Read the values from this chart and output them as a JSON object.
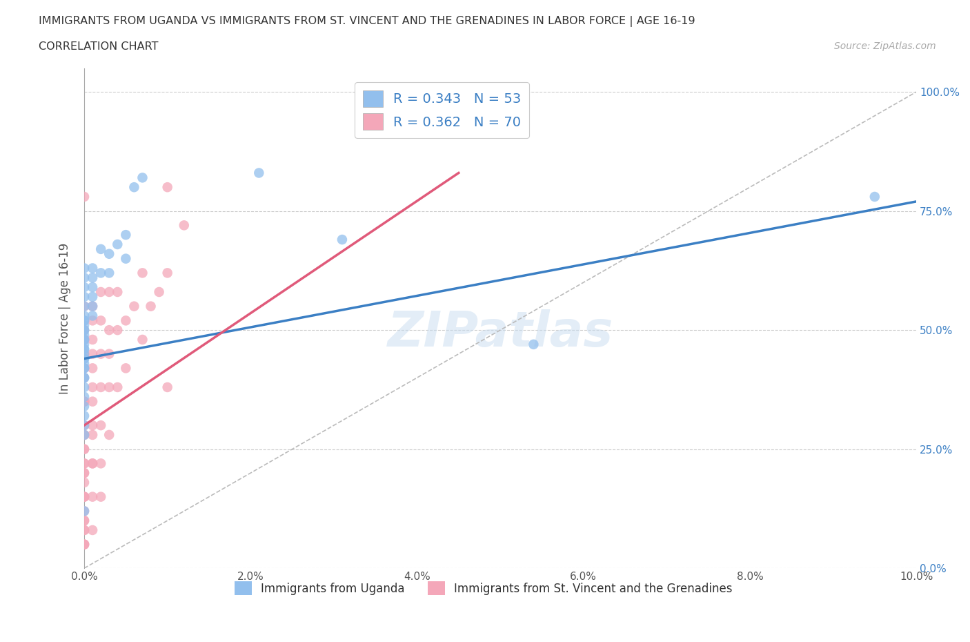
{
  "title": "IMMIGRANTS FROM UGANDA VS IMMIGRANTS FROM ST. VINCENT AND THE GRENADINES IN LABOR FORCE | AGE 16-19",
  "subtitle": "CORRELATION CHART",
  "source": "Source: ZipAtlas.com",
  "ylabel": "In Labor Force | Age 16-19",
  "xlim": [
    0.0,
    0.1
  ],
  "ylim": [
    0.0,
    1.05
  ],
  "xticks": [
    0.0,
    0.02,
    0.04,
    0.06,
    0.08,
    0.1
  ],
  "xticklabels": [
    "0.0%",
    "2.0%",
    "4.0%",
    "6.0%",
    "8.0%",
    "10.0%"
  ],
  "yticks_right": [
    0.0,
    0.25,
    0.5,
    0.75,
    1.0
  ],
  "yticklabels_right": [
    "0.0%",
    "25.0%",
    "50.0%",
    "75.0%",
    "100.0%"
  ],
  "r_uganda": 0.343,
  "n_uganda": 53,
  "r_stvincent": 0.362,
  "n_stvincent": 70,
  "color_uganda": "#92BFED",
  "color_stvincent": "#F4A7B9",
  "line_color_uganda": "#3B7FC4",
  "line_color_stvincent": "#E05A7A",
  "watermark": "ZIPatlas",
  "uganda_line_x0": 0.0,
  "uganda_line_y0": 0.44,
  "uganda_line_x1": 0.1,
  "uganda_line_y1": 0.77,
  "stvincent_line_x0": 0.0,
  "stvincent_line_y0": 0.3,
  "stvincent_line_x1": 0.045,
  "stvincent_line_y1": 0.83,
  "uganda_x": [
    0.038,
    0.042,
    0.021,
    0.031,
    0.007,
    0.006,
    0.005,
    0.005,
    0.004,
    0.003,
    0.003,
    0.002,
    0.002,
    0.001,
    0.001,
    0.001,
    0.001,
    0.001,
    0.001,
    0.0,
    0.0,
    0.0,
    0.0,
    0.0,
    0.0,
    0.0,
    0.0,
    0.0,
    0.0,
    0.0,
    0.0,
    0.0,
    0.0,
    0.0,
    0.0,
    0.0,
    0.0,
    0.0,
    0.0,
    0.0,
    0.0,
    0.0,
    0.0,
    0.0,
    0.0,
    0.0,
    0.0,
    0.0,
    0.0,
    0.0,
    0.0,
    0.095,
    0.054
  ],
  "uganda_y": [
    0.97,
    0.97,
    0.83,
    0.69,
    0.82,
    0.8,
    0.7,
    0.65,
    0.68,
    0.66,
    0.62,
    0.67,
    0.62,
    0.63,
    0.61,
    0.59,
    0.57,
    0.55,
    0.53,
    0.63,
    0.61,
    0.59,
    0.57,
    0.55,
    0.53,
    0.51,
    0.49,
    0.47,
    0.52,
    0.5,
    0.48,
    0.46,
    0.44,
    0.42,
    0.4,
    0.52,
    0.5,
    0.48,
    0.46,
    0.44,
    0.42,
    0.4,
    0.38,
    0.36,
    0.34,
    0.32,
    0.3,
    0.28,
    0.45,
    0.43,
    0.12,
    0.78,
    0.47
  ],
  "stvincent_x": [
    0.01,
    0.012,
    0.01,
    0.01,
    0.009,
    0.008,
    0.007,
    0.007,
    0.006,
    0.005,
    0.005,
    0.004,
    0.004,
    0.004,
    0.003,
    0.003,
    0.003,
    0.003,
    0.003,
    0.002,
    0.002,
    0.002,
    0.002,
    0.002,
    0.002,
    0.002,
    0.001,
    0.001,
    0.001,
    0.001,
    0.001,
    0.001,
    0.001,
    0.001,
    0.001,
    0.001,
    0.001,
    0.001,
    0.001,
    0.0,
    0.0,
    0.0,
    0.0,
    0.0,
    0.0,
    0.0,
    0.0,
    0.0,
    0.0,
    0.0,
    0.0,
    0.0,
    0.0,
    0.0,
    0.0,
    0.0,
    0.0,
    0.0,
    0.0,
    0.0,
    0.0,
    0.0,
    0.0,
    0.0,
    0.0,
    0.0,
    0.0,
    0.0,
    0.0,
    0.0
  ],
  "stvincent_y": [
    0.8,
    0.72,
    0.62,
    0.38,
    0.58,
    0.55,
    0.62,
    0.48,
    0.55,
    0.52,
    0.42,
    0.58,
    0.5,
    0.38,
    0.58,
    0.5,
    0.45,
    0.38,
    0.28,
    0.58,
    0.52,
    0.45,
    0.38,
    0.3,
    0.22,
    0.15,
    0.55,
    0.48,
    0.42,
    0.35,
    0.28,
    0.22,
    0.15,
    0.08,
    0.52,
    0.45,
    0.38,
    0.3,
    0.22,
    0.55,
    0.5,
    0.45,
    0.4,
    0.35,
    0.3,
    0.25,
    0.2,
    0.15,
    0.1,
    0.05,
    0.48,
    0.42,
    0.35,
    0.28,
    0.22,
    0.15,
    0.08,
    0.35,
    0.28,
    0.22,
    0.15,
    0.08,
    0.25,
    0.18,
    0.12,
    0.05,
    0.78,
    0.2,
    0.1,
    0.05
  ]
}
